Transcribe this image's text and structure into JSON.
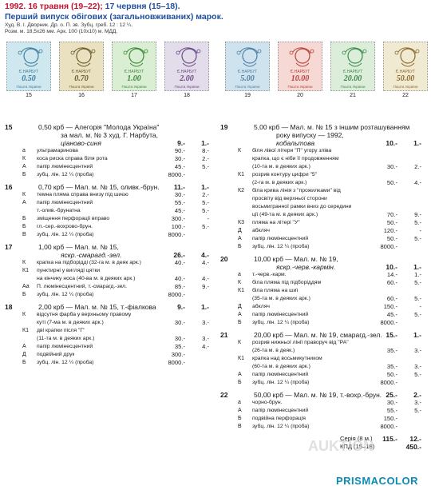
{
  "header": {
    "date1": "1992. 16 травня (19–22);",
    "date2": "17 червня (15–18).",
    "title": "Перший випуск обігових (загальновживаних) марок.",
    "credits": "Худ. В. І. Дворник. Др. о. П. зв. Зубц. греб. 12 : 12 ¼.",
    "specs": "Розм. м. 18,5х26 мм. Арк. 100 (10х10) м. МДД."
  },
  "stamps": [
    {
      "num": "15",
      "value": "0.50",
      "color": "#cfe7ee",
      "ink": "#3a7f9e"
    },
    {
      "num": "16",
      "value": "0.70",
      "color": "#e9e1c0",
      "ink": "#6b5b2a"
    },
    {
      "num": "17",
      "value": "1.00",
      "color": "#d9eed2",
      "ink": "#3e8a3a"
    },
    {
      "num": "18",
      "value": "2.00",
      "color": "#e3dcea",
      "ink": "#6b4a86"
    },
    {
      "num": "19",
      "value": "5.00",
      "color": "#cfe3ef",
      "ink": "#4c7ea6"
    },
    {
      "num": "20",
      "value": "10.00",
      "color": "#f6d9d4",
      "ink": "#b8433a"
    },
    {
      "num": "21",
      "value": "20.00",
      "color": "#dceed9",
      "ink": "#3c8a4d"
    },
    {
      "num": "22",
      "value": "50.00",
      "color": "#f1ead2",
      "ink": "#8d6a2e"
    }
  ],
  "stamp_text": {
    "top": "Є.НАРБУТ",
    "bottom": "Пошта України"
  },
  "left_rows": [
    {
      "n": "15",
      "t": "0,50 крб — Алегорія \"Молода Україна\"",
      "cls": "main",
      "bold": false
    },
    {
      "t": "за мал. м. № 3 худ. Г. Нарбута,",
      "cls": "main"
    },
    {
      "t": "ціаново-синя",
      "cls": "main it",
      "p1": "9.-",
      "p2": "1.-",
      "bold": true
    },
    {
      "k": "а",
      "t": "ультрамаринова",
      "cls": "sub it",
      "p1": "90.-",
      "p2": "8.-"
    },
    {
      "k": "К",
      "t": "коса риска справа біля рота",
      "cls": "sub",
      "p1": "30.-",
      "p2": "2.-"
    },
    {
      "k": "А",
      "t": "папір люмінесцентний",
      "cls": "sub",
      "p1": "45.-",
      "p2": "5.-"
    },
    {
      "k": "Б",
      "t": "зубц. лін. 12 ¼ (проба)",
      "cls": "sub",
      "p1": "8000.-",
      "p2": ""
    },
    {
      "n": "16",
      "t": "0,70 крб — Мал. м. № 15, оливк.-брун.",
      "cls": "main",
      "p1": "11.-",
      "p2": "1.-",
      "bold": true,
      "gap": true
    },
    {
      "k": "К",
      "t": "темна пляма справа внизу під шиєю",
      "cls": "sub",
      "p1": "30.-",
      "p2": "2.-"
    },
    {
      "k": "А",
      "t": "папір люмінесцентний",
      "cls": "sub",
      "p1": "55.-",
      "p2": "5.-"
    },
    {
      "k": "",
      "t": "т.-олив.-брунатна",
      "cls": "sub it",
      "p1": "45.-",
      "p2": "5.-"
    },
    {
      "k": "Б",
      "t": "зміщення перфорації вправо",
      "cls": "sub",
      "p1": "300.-",
      "p2": "-"
    },
    {
      "k": "Б",
      "t": "гл.-сер.-вохрово-брун.",
      "cls": "sub it",
      "p1": "100.-",
      "p2": "5.-"
    },
    {
      "k": "В",
      "t": "зубц. лін. 12 ¼ (проба)",
      "cls": "sub",
      "p1": "8000.-",
      "p2": ""
    },
    {
      "n": "17",
      "t": "1,00 крб — Мал. м. № 15,",
      "cls": "main",
      "gap": true
    },
    {
      "t": "яскр.-смарагд.-зел.",
      "cls": "main it",
      "p1": "26.-",
      "p2": "4.-",
      "bold": true
    },
    {
      "k": "К",
      "t": "крапка на підборідді (32-га м. в деяк арк.)",
      "cls": "sub",
      "p1": "40.-",
      "p2": "4.-"
    },
    {
      "k": "К1",
      "t": "пунктирні у вигляді цятки",
      "cls": "sub",
      "p1": "",
      "p2": ""
    },
    {
      "k": "",
      "t": "на кінчику носа (40-ва м. в деяких арк.)",
      "cls": "sub",
      "p1": "40.-",
      "p2": "4.-"
    },
    {
      "k": "Аа",
      "t": "П. люмінесцентний, т.-смарагд.-зел.",
      "cls": "sub",
      "p1": "85.-",
      "p2": "9.-"
    },
    {
      "k": "Б",
      "t": "зубц. лін. 12 ¼ (проба)",
      "cls": "sub",
      "p1": "8000.-",
      "p2": ""
    },
    {
      "n": "18",
      "t": "2,00 крб — Мал. м. № 15, т.-фіалкова",
      "cls": "main",
      "p1": "9.-",
      "p2": "1.-",
      "bold": true,
      "gap": true
    },
    {
      "k": "К",
      "t": "відсутня фарба у верхньому правому",
      "cls": "sub",
      "p1": "",
      "p2": ""
    },
    {
      "k": "",
      "t": "куті (7-ма м. в деяких арк.)",
      "cls": "sub",
      "p1": "30.-",
      "p2": "3.-"
    },
    {
      "k": "К1",
      "t": "дві крапки після \"Г\"",
      "cls": "sub",
      "p1": "",
      "p2": ""
    },
    {
      "k": "",
      "t": "(11-та м. в деяких арк.)",
      "cls": "sub",
      "p1": "30.-",
      "p2": "3.-"
    },
    {
      "k": "А",
      "t": "папір люмінесцентний",
      "cls": "sub",
      "p1": "35.-",
      "p2": "4.-"
    },
    {
      "k": "Д",
      "t": "подвійний друк",
      "cls": "sub",
      "p1": "300.-",
      "p2": ""
    },
    {
      "k": "Б",
      "t": "зубц. лін. 12 ¼ (проба)",
      "cls": "sub",
      "p1": "8000.-",
      "p2": ""
    }
  ],
  "right_rows": [
    {
      "n": "19",
      "t": "5,00 крб — Мал. м. № 15 з іншим розташуванням",
      "cls": "main"
    },
    {
      "t": "року випуску — 1992,",
      "cls": "main"
    },
    {
      "t": "кобальтова",
      "cls": "main it",
      "p1": "10.-",
      "p2": "1.-",
      "bold": true
    },
    {
      "k": "К",
      "t": "біля лівої літери \"П\" угору зліва",
      "cls": "sub",
      "p1": "",
      "p2": ""
    },
    {
      "k": "",
      "t": "крапка, що є ніби її продовженням",
      "cls": "sub",
      "p1": "",
      "p2": ""
    },
    {
      "k": "",
      "t": "(10-та м. в деяких арк.)",
      "cls": "sub",
      "p1": "30.-",
      "p2": "2.-"
    },
    {
      "k": "К1",
      "t": "розрив контуру цифри \"5\"",
      "cls": "sub",
      "p1": "",
      "p2": ""
    },
    {
      "k": "",
      "t": "(2-га м. в деяких арк.)",
      "cls": "sub",
      "p1": "50.-",
      "p2": "4.-"
    },
    {
      "k": "К2",
      "t": "біла кривa лінія з \"прожилками\" від",
      "cls": "sub",
      "p1": "",
      "p2": ""
    },
    {
      "k": "",
      "t": "просвіту від верхньої сторони",
      "cls": "sub",
      "p1": "",
      "p2": ""
    },
    {
      "k": "",
      "t": "восьмигранної рамки вниз до середини",
      "cls": "sub",
      "p1": "",
      "p2": ""
    },
    {
      "k": "",
      "t": "ції (49-та м. в деяких арк.)",
      "cls": "sub",
      "p1": "70.-",
      "p2": "9.-"
    },
    {
      "k": "К3",
      "t": "пляма на літері \"У\"",
      "cls": "sub",
      "p1": "50.-",
      "p2": "5.-"
    },
    {
      "k": "Д",
      "t": "абкляч",
      "cls": "sub",
      "p1": "120.-",
      "p2": "-"
    },
    {
      "k": "А",
      "t": "папір люмінесцентний",
      "cls": "sub",
      "p1": "50.-",
      "p2": "5.-"
    },
    {
      "k": "Б",
      "t": "зубц. лін. 12 ¼ (проба)",
      "cls": "sub",
      "p1": "8000.-",
      "p2": ""
    },
    {
      "n": "20",
      "t": "10,00 крб — Мал. м. № 19,",
      "cls": "main",
      "gap": true
    },
    {
      "t": "яскр.-черв.-кармін.",
      "cls": "main it",
      "p1": "10.-",
      "p2": "1.-",
      "bold": true
    },
    {
      "k": "а",
      "t": "т.-черв.-карм.",
      "cls": "sub it",
      "p1": "14.-",
      "p2": "1.-"
    },
    {
      "k": "К",
      "t": "біла пляма під підборіддям",
      "cls": "sub",
      "p1": "60.-",
      "p2": "5.-"
    },
    {
      "k": "К1",
      "t": "біла пляма на шиї",
      "cls": "sub",
      "p1": "",
      "p2": ""
    },
    {
      "k": "",
      "t": "(35-та м. в деяких арк.)",
      "cls": "sub",
      "p1": "60.-",
      "p2": "5.-"
    },
    {
      "k": "Д",
      "t": "абкляч",
      "cls": "sub",
      "p1": "150.-",
      "p2": "-"
    },
    {
      "k": "А",
      "t": "папір люмінесцентний",
      "cls": "sub",
      "p1": "45.-",
      "p2": "5.-"
    },
    {
      "k": "Б",
      "t": "зубц. лін. 12 ¼ (проба)",
      "cls": "sub",
      "p1": "8000.-",
      "p2": ""
    },
    {
      "n": "21",
      "t": "20,00 крб — Мал. м. № 19, смарагд.-зел.",
      "cls": "main",
      "p1": "15.-",
      "p2": "1.-",
      "bold": true,
      "gap": true
    },
    {
      "k": "К",
      "t": "розрив нижньої лінії праворуч від \"РА\"",
      "cls": "sub",
      "p1": "",
      "p2": ""
    },
    {
      "k": "",
      "t": "(26-та м. в деяк.)",
      "cls": "sub",
      "p1": "35.-",
      "p2": "3.-"
    },
    {
      "k": "К1",
      "t": "крапка над восьмикутником",
      "cls": "sub",
      "p1": "",
      "p2": ""
    },
    {
      "k": "",
      "t": "(60-та м. в деяких арк.)",
      "cls": "sub",
      "p1": "35.-",
      "p2": "3.-"
    },
    {
      "k": "А",
      "t": "папір люмінесцентний",
      "cls": "sub",
      "p1": "50.-",
      "p2": "5.-"
    },
    {
      "k": "Б",
      "t": "зубц. лін. 12 ¼ (проба)",
      "cls": "sub",
      "p1": "8000.-",
      "p2": ""
    },
    {
      "n": "22",
      "t": "50,00 крб — Мал. м. № 19, т.-вохр.-брун.",
      "cls": "main",
      "p1": "25.-",
      "p2": "2.-",
      "bold": true,
      "gap": true
    },
    {
      "k": "а",
      "t": "чорно-брун.",
      "cls": "sub it",
      "p1": "30.-",
      "p2": "3.-"
    },
    {
      "k": "А",
      "t": "папір люмінесцентний",
      "cls": "sub",
      "p1": "55.-",
      "p2": "5.-"
    },
    {
      "k": "Б",
      "t": "подвійна перфорація",
      "cls": "sub",
      "p1": "150.-",
      "p2": ""
    },
    {
      "k": "В",
      "t": "зубц. лін. 12 ¼ (проба)",
      "cls": "sub",
      "p1": "8000.-",
      "p2": ""
    }
  ],
  "totals": [
    {
      "label": "Серія (8 м.)",
      "p1": "115.-",
      "p2": "12.-"
    },
    {
      "label": "КПД (15–18)",
      "p1": "",
      "p2": "450.-"
    }
  ],
  "watermark": "PRISMACOLOR",
  "watermark_bg": "AUKTION"
}
